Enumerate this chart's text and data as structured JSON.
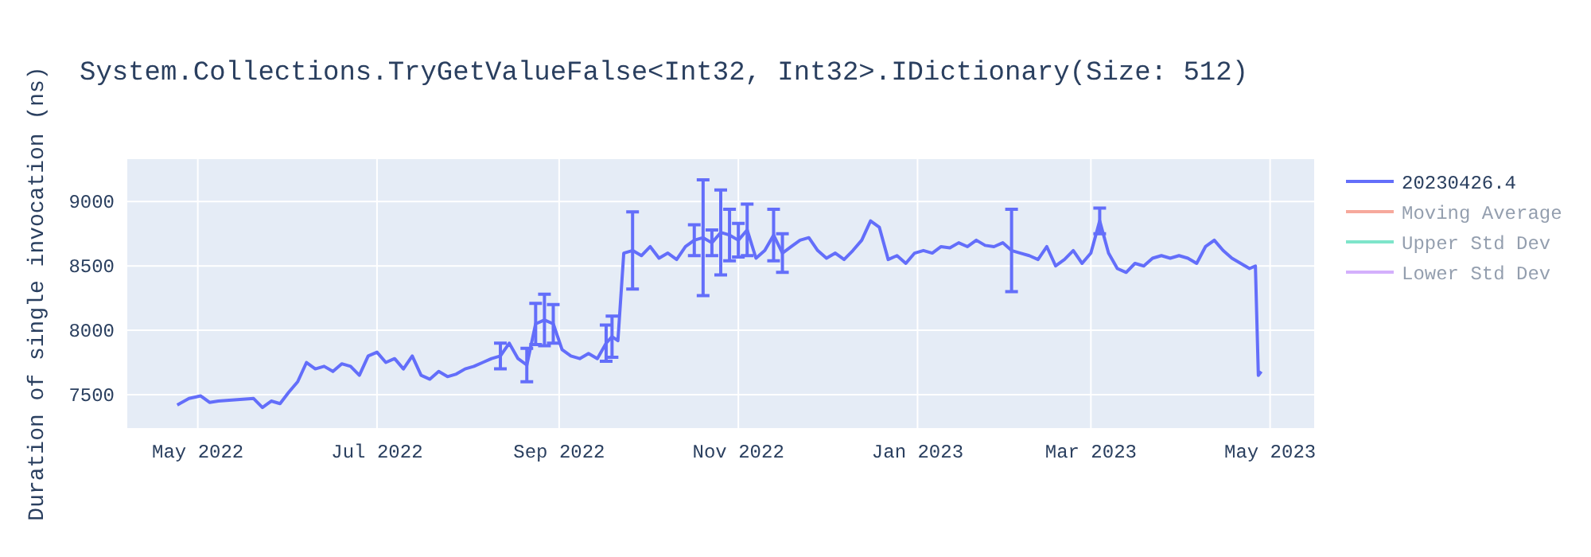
{
  "chart_data": {
    "type": "line",
    "title": "System.Collections.TryGetValueFalse<Int32, Int32>.IDictionary(Size: 512)",
    "ylabel": "Duration of single invocation (ns)",
    "xlim": [
      "2022-04-07",
      "2023-05-16"
    ],
    "xticks": [
      {
        "value": "2022-05-01",
        "label": "May 2022"
      },
      {
        "value": "2022-07-01",
        "label": "Jul 2022"
      },
      {
        "value": "2022-09-01",
        "label": "Sep 2022"
      },
      {
        "value": "2022-11-01",
        "label": "Nov 2022"
      },
      {
        "value": "2023-01-01",
        "label": "Jan 2023"
      },
      {
        "value": "2023-03-01",
        "label": "Mar 2023"
      },
      {
        "value": "2023-05-01",
        "label": "May 2023"
      }
    ],
    "ylim": [
      7240,
      9330
    ],
    "yticks": [
      7500,
      8000,
      8500,
      9000
    ],
    "grid": true,
    "legend": "top right",
    "line_style": "solid",
    "series": [
      {
        "name": "20230426.4",
        "color": "#636efa",
        "x": [
          "2022-04-24",
          "2022-04-28",
          "2022-05-02",
          "2022-05-05",
          "2022-05-08",
          "2022-05-20",
          "2022-05-23",
          "2022-05-26",
          "2022-05-29",
          "2022-06-01",
          "2022-06-04",
          "2022-06-07",
          "2022-06-10",
          "2022-06-13",
          "2022-06-16",
          "2022-06-19",
          "2022-06-22",
          "2022-06-25",
          "2022-06-28",
          "2022-07-01",
          "2022-07-04",
          "2022-07-07",
          "2022-07-10",
          "2022-07-13",
          "2022-07-16",
          "2022-07-19",
          "2022-07-22",
          "2022-07-25",
          "2022-07-28",
          "2022-07-31",
          "2022-08-03",
          "2022-08-06",
          "2022-08-09",
          "2022-08-12",
          "2022-08-15",
          "2022-08-18",
          "2022-08-21",
          "2022-08-24",
          "2022-08-27",
          "2022-08-30",
          "2022-09-02",
          "2022-09-05",
          "2022-09-08",
          "2022-09-11",
          "2022-09-14",
          "2022-09-17",
          "2022-09-19",
          "2022-09-21",
          "2022-09-23",
          "2022-09-26",
          "2022-09-29",
          "2022-10-02",
          "2022-10-05",
          "2022-10-08",
          "2022-10-11",
          "2022-10-14",
          "2022-10-17",
          "2022-10-20",
          "2022-10-23",
          "2022-10-26",
          "2022-10-29",
          "2022-11-01",
          "2022-11-04",
          "2022-11-07",
          "2022-11-10",
          "2022-11-13",
          "2022-11-16",
          "2022-11-19",
          "2022-11-22",
          "2022-11-25",
          "2022-11-28",
          "2022-12-01",
          "2022-12-04",
          "2022-12-07",
          "2022-12-10",
          "2022-12-13",
          "2022-12-16",
          "2022-12-19",
          "2022-12-22",
          "2022-12-25",
          "2022-12-28",
          "2022-12-31",
          "2023-01-03",
          "2023-01-06",
          "2023-01-09",
          "2023-01-12",
          "2023-01-15",
          "2023-01-18",
          "2023-01-21",
          "2023-01-24",
          "2023-01-27",
          "2023-01-30",
          "2023-02-02",
          "2023-02-05",
          "2023-02-08",
          "2023-02-11",
          "2023-02-14",
          "2023-02-17",
          "2023-02-20",
          "2023-02-23",
          "2023-02-26",
          "2023-03-01",
          "2023-03-04",
          "2023-03-07",
          "2023-03-10",
          "2023-03-13",
          "2023-03-16",
          "2023-03-19",
          "2023-03-22",
          "2023-03-25",
          "2023-03-28",
          "2023-03-31",
          "2023-04-03",
          "2023-04-06",
          "2023-04-09",
          "2023-04-12",
          "2023-04-15",
          "2023-04-18",
          "2023-04-21",
          "2023-04-24",
          "2023-04-26",
          "2023-04-27",
          "2023-04-28"
        ],
        "values": [
          7420,
          7470,
          7490,
          7440,
          7450,
          7470,
          7400,
          7450,
          7430,
          7520,
          7600,
          7750,
          7700,
          7720,
          7680,
          7740,
          7720,
          7650,
          7800,
          7830,
          7750,
          7780,
          7700,
          7800,
          7650,
          7620,
          7680,
          7640,
          7660,
          7700,
          7720,
          7750,
          7780,
          7800,
          7900,
          7780,
          7730,
          8050,
          8080,
          8050,
          7850,
          7800,
          7780,
          7820,
          7780,
          7900,
          7950,
          7920,
          8600,
          8620,
          8580,
          8650,
          8560,
          8600,
          8550,
          8650,
          8700,
          8720,
          8680,
          8760,
          8740,
          8700,
          8780,
          8560,
          8620,
          8740,
          8600,
          8650,
          8700,
          8720,
          8620,
          8560,
          8600,
          8550,
          8620,
          8700,
          8850,
          8800,
          8550,
          8580,
          8520,
          8600,
          8620,
          8600,
          8650,
          8640,
          8680,
          8650,
          8700,
          8660,
          8650,
          8680,
          8620,
          8600,
          8580,
          8550,
          8650,
          8500,
          8550,
          8620,
          8520,
          8600,
          8850,
          8600,
          8480,
          8450,
          8520,
          8500,
          8560,
          8580,
          8560,
          8580,
          8560,
          8520,
          8650,
          8700,
          8620,
          8560,
          8520,
          8480,
          8500,
          7650,
          7680
        ],
        "errors": [
          null,
          null,
          null,
          null,
          null,
          null,
          null,
          null,
          null,
          null,
          null,
          null,
          null,
          null,
          null,
          null,
          null,
          null,
          null,
          null,
          null,
          null,
          null,
          null,
          null,
          null,
          null,
          null,
          null,
          null,
          null,
          null,
          null,
          100,
          null,
          null,
          130,
          160,
          200,
          150,
          null,
          null,
          null,
          null,
          null,
          140,
          160,
          null,
          null,
          300,
          null,
          null,
          null,
          null,
          null,
          null,
          120,
          450,
          100,
          330,
          200,
          130,
          200,
          null,
          null,
          200,
          150,
          null,
          null,
          null,
          null,
          null,
          null,
          null,
          null,
          null,
          null,
          null,
          null,
          null,
          null,
          null,
          null,
          null,
          null,
          null,
          null,
          null,
          null,
          null,
          null,
          null,
          320,
          null,
          null,
          null,
          null,
          null,
          null,
          null,
          null,
          null,
          100,
          null,
          null,
          null,
          null,
          null,
          null,
          null,
          null,
          null,
          null,
          null,
          null,
          null,
          null,
          null,
          null,
          null,
          null,
          null,
          null
        ]
      },
      {
        "name": "Moving Average",
        "color": "#ef553b"
      },
      {
        "name": "Upper Std Dev",
        "color": "#00cc96"
      },
      {
        "name": "Lower Std Dev",
        "color": "#ab63fa"
      }
    ]
  }
}
